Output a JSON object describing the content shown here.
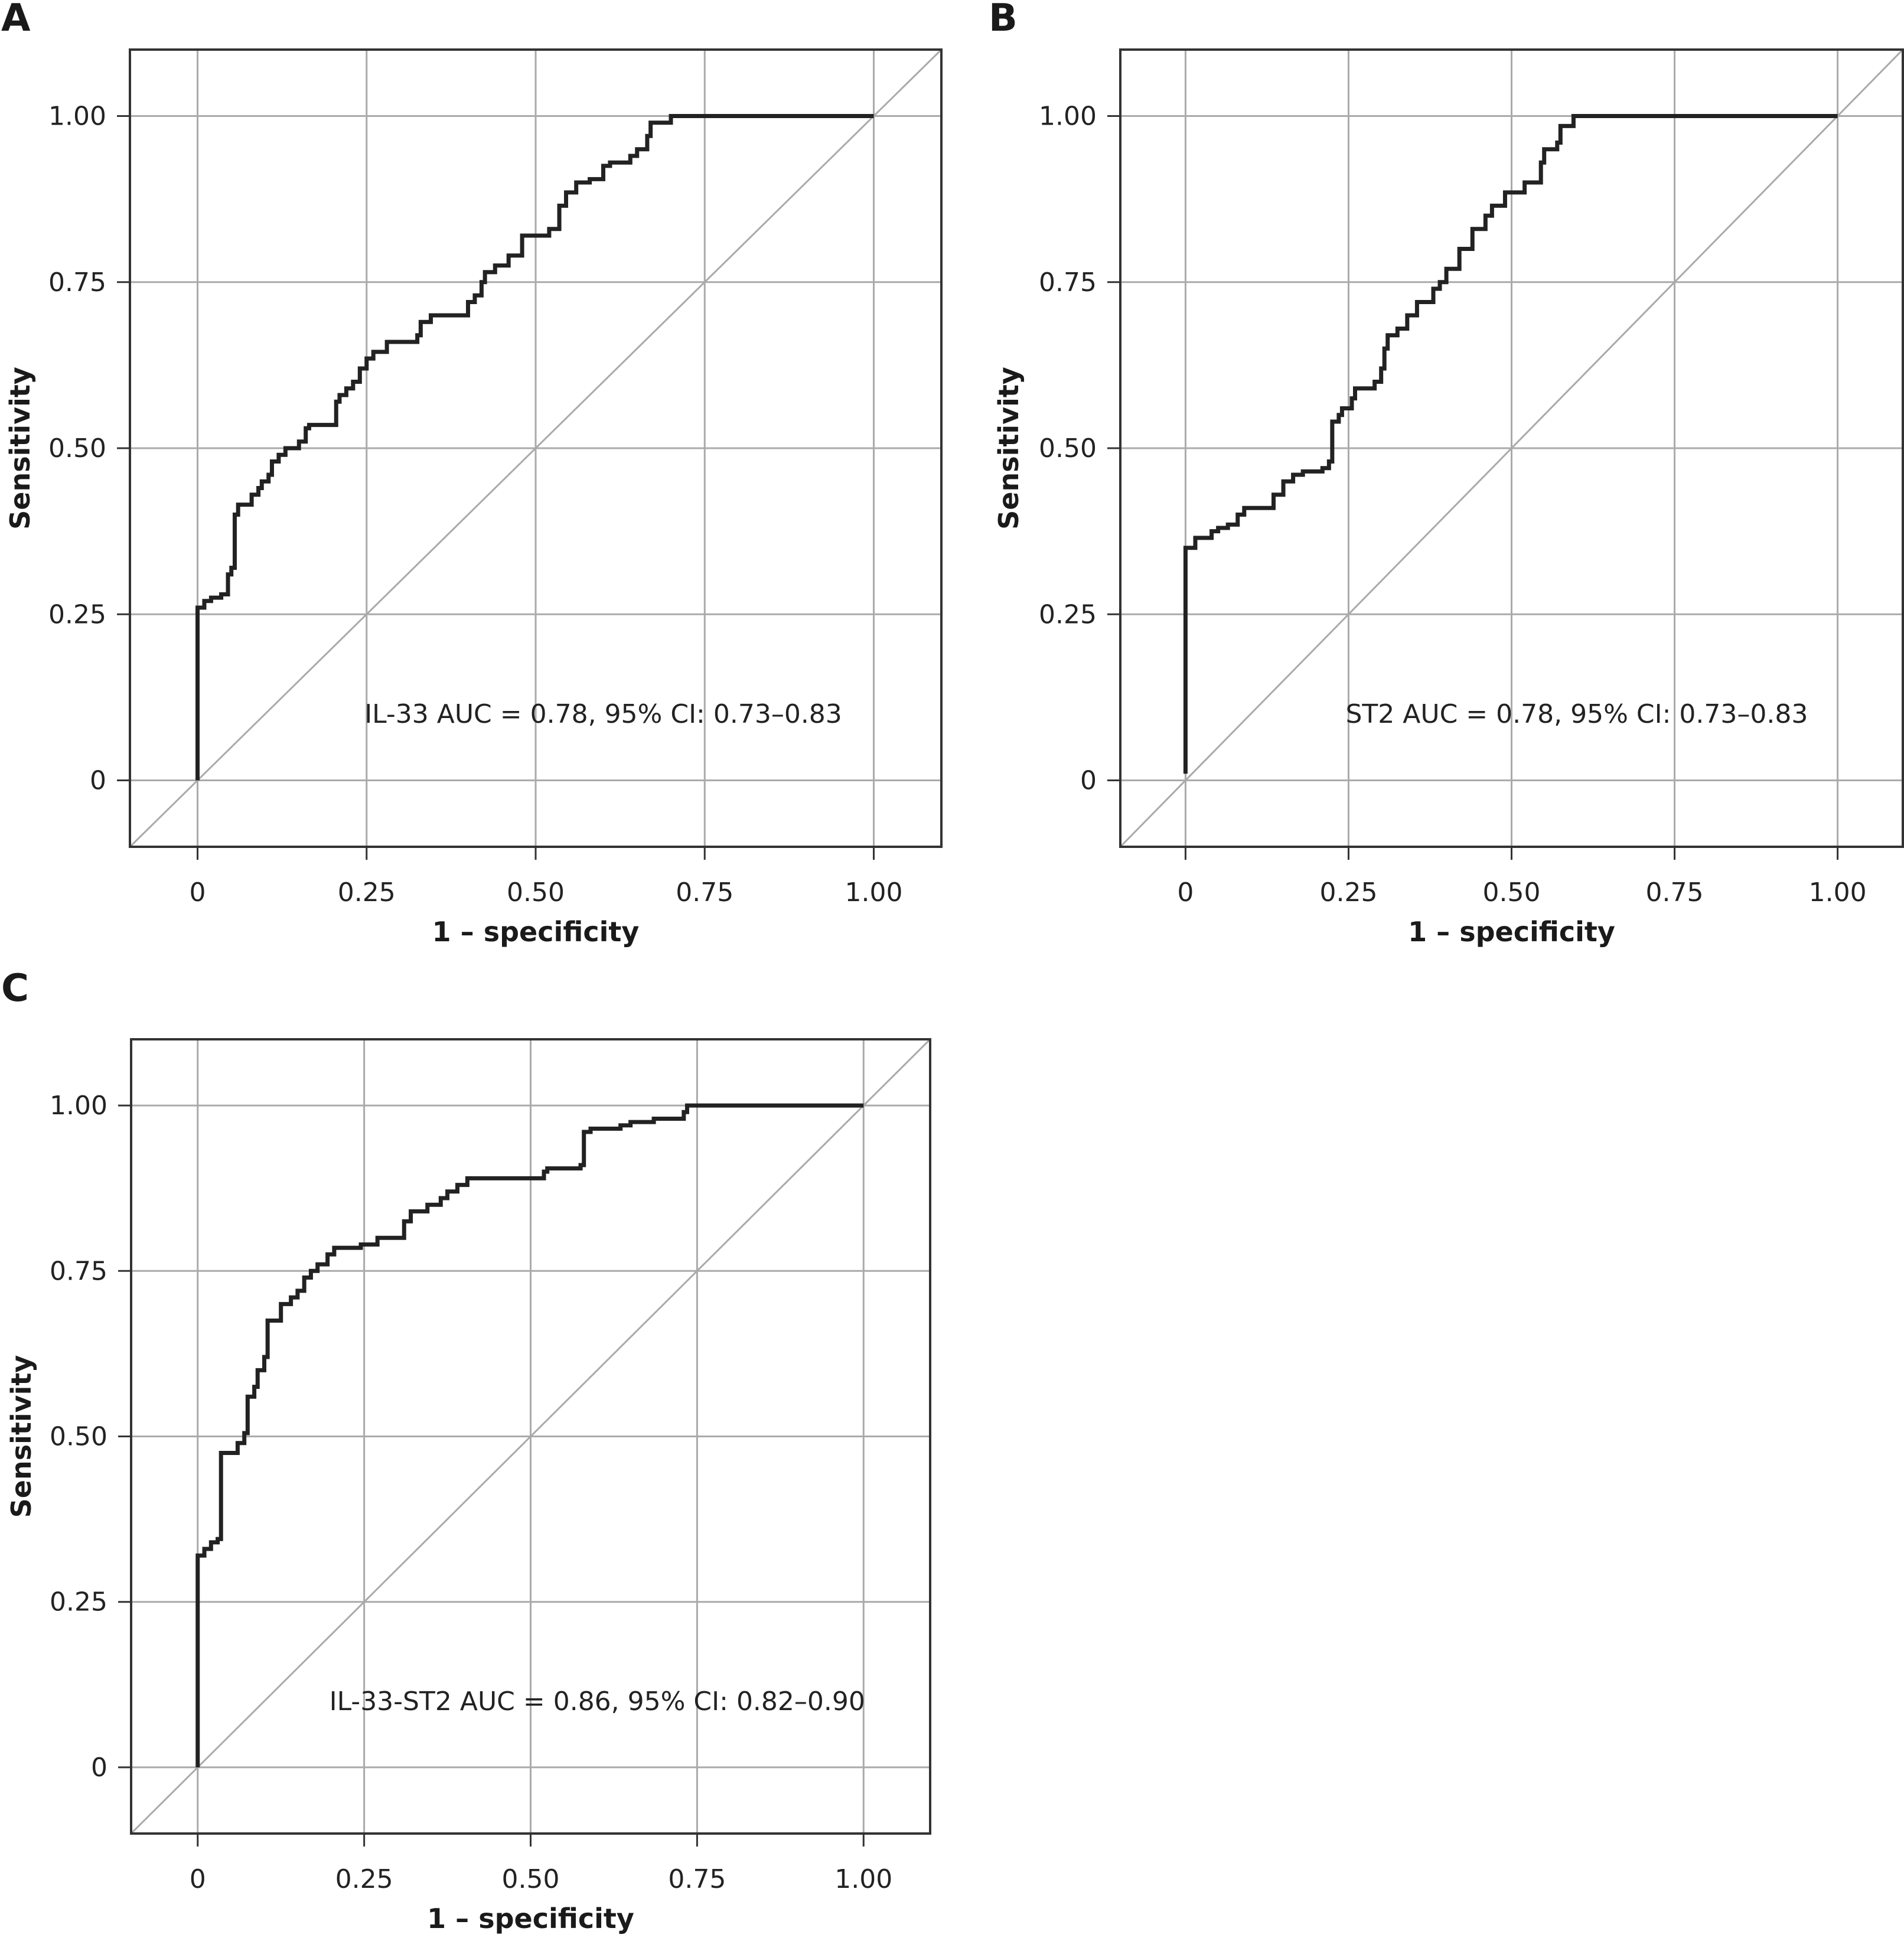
{
  "chart_data": [
    {
      "panel": "A",
      "type": "line",
      "title": "",
      "xlabel": "1 – specificity",
      "ylabel": "Sensitivity",
      "xlim": [
        -0.1,
        1.1
      ],
      "ylim": [
        -0.1,
        1.1
      ],
      "xticks": [
        0,
        0.25,
        0.5,
        0.75,
        1.0
      ],
      "xtick_labels": [
        "0",
        "0.25",
        "0.50",
        "0.75",
        "1.00"
      ],
      "yticks": [
        0,
        0.25,
        0.5,
        0.75,
        1.0
      ],
      "ytick_labels": [
        "0",
        "0.25",
        "0.50",
        "0.75",
        "1.00"
      ],
      "grid": true,
      "annotation": "IL-33 AUC = 0.78, 95% CI: 0.73–0.83",
      "reference_line": [
        [
          -0.1,
          -0.1
        ],
        [
          1.1,
          1.1
        ]
      ],
      "series": [
        {
          "name": "IL-33",
          "step": true,
          "points": [
            [
              0,
              0
            ],
            [
              0,
              0.26
            ],
            [
              0.01,
              0.27
            ],
            [
              0.02,
              0.275
            ],
            [
              0.035,
              0.28
            ],
            [
              0.045,
              0.31
            ],
            [
              0.05,
              0.32
            ],
            [
              0.055,
              0.4
            ],
            [
              0.06,
              0.415
            ],
            [
              0.08,
              0.43
            ],
            [
              0.09,
              0.44
            ],
            [
              0.095,
              0.45
            ],
            [
              0.105,
              0.46
            ],
            [
              0.11,
              0.48
            ],
            [
              0.12,
              0.49
            ],
            [
              0.13,
              0.5
            ],
            [
              0.15,
              0.51
            ],
            [
              0.16,
              0.53
            ],
            [
              0.165,
              0.535
            ],
            [
              0.205,
              0.57
            ],
            [
              0.21,
              0.58
            ],
            [
              0.22,
              0.59
            ],
            [
              0.23,
              0.6
            ],
            [
              0.24,
              0.62
            ],
            [
              0.25,
              0.635
            ],
            [
              0.26,
              0.645
            ],
            [
              0.28,
              0.66
            ],
            [
              0.325,
              0.67
            ],
            [
              0.33,
              0.69
            ],
            [
              0.345,
              0.7
            ],
            [
              0.4,
              0.72
            ],
            [
              0.41,
              0.73
            ],
            [
              0.42,
              0.75
            ],
            [
              0.425,
              0.765
            ],
            [
              0.44,
              0.775
            ],
            [
              0.46,
              0.79
            ],
            [
              0.48,
              0.82
            ],
            [
              0.52,
              0.83
            ],
            [
              0.535,
              0.865
            ],
            [
              0.545,
              0.885
            ],
            [
              0.56,
              0.9
            ],
            [
              0.58,
              0.905
            ],
            [
              0.6,
              0.925
            ],
            [
              0.61,
              0.93
            ],
            [
              0.64,
              0.94
            ],
            [
              0.65,
              0.95
            ],
            [
              0.665,
              0.97
            ],
            [
              0.67,
              0.99
            ],
            [
              0.7,
              1.0
            ],
            [
              1.0,
              1.0
            ]
          ]
        }
      ]
    },
    {
      "panel": "B",
      "type": "line",
      "title": "",
      "xlabel": "1 – specificity",
      "ylabel": "Sensitivity",
      "xlim": [
        -0.1,
        1.1
      ],
      "ylim": [
        -0.1,
        1.1
      ],
      "xticks": [
        0,
        0.25,
        0.5,
        0.75,
        1.0
      ],
      "xtick_labels": [
        "0",
        "0.25",
        "0.50",
        "0.75",
        "1.00"
      ],
      "yticks": [
        0,
        0.25,
        0.5,
        0.75,
        1.0
      ],
      "ytick_labels": [
        "0",
        "0.25",
        "0.50",
        "0.75",
        "1.00"
      ],
      "grid": true,
      "annotation": "ST2 AUC = 0.78, 95% CI: 0.73–0.83",
      "reference_line": [
        [
          -0.1,
          -0.1
        ],
        [
          1.1,
          1.1
        ]
      ],
      "series": [
        {
          "name": "ST2",
          "step": true,
          "points": [
            [
              0,
              0.01
            ],
            [
              0,
              0.35
            ],
            [
              0.015,
              0.365
            ],
            [
              0.04,
              0.375
            ],
            [
              0.05,
              0.38
            ],
            [
              0.065,
              0.385
            ],
            [
              0.08,
              0.4
            ],
            [
              0.09,
              0.41
            ],
            [
              0.135,
              0.43
            ],
            [
              0.15,
              0.45
            ],
            [
              0.165,
              0.46
            ],
            [
              0.18,
              0.465
            ],
            [
              0.21,
              0.47
            ],
            [
              0.22,
              0.48
            ],
            [
              0.225,
              0.54
            ],
            [
              0.235,
              0.55
            ],
            [
              0.24,
              0.56
            ],
            [
              0.255,
              0.575
            ],
            [
              0.26,
              0.59
            ],
            [
              0.29,
              0.6
            ],
            [
              0.3,
              0.62
            ],
            [
              0.305,
              0.65
            ],
            [
              0.31,
              0.67
            ],
            [
              0.325,
              0.68
            ],
            [
              0.34,
              0.7
            ],
            [
              0.355,
              0.72
            ],
            [
              0.38,
              0.74
            ],
            [
              0.39,
              0.75
            ],
            [
              0.4,
              0.77
            ],
            [
              0.42,
              0.8
            ],
            [
              0.44,
              0.83
            ],
            [
              0.46,
              0.85
            ],
            [
              0.47,
              0.865
            ],
            [
              0.49,
              0.885
            ],
            [
              0.52,
              0.9
            ],
            [
              0.545,
              0.93
            ],
            [
              0.55,
              0.95
            ],
            [
              0.57,
              0.96
            ],
            [
              0.575,
              0.985
            ],
            [
              0.595,
              1.0
            ],
            [
              1.0,
              1.0
            ]
          ]
        }
      ]
    },
    {
      "panel": "C",
      "type": "line",
      "title": "",
      "xlabel": "1 – specificity",
      "ylabel": "Sensitivity",
      "xlim": [
        -0.1,
        1.1
      ],
      "ylim": [
        -0.1,
        1.1
      ],
      "xticks": [
        0,
        0.25,
        0.5,
        0.75,
        1.0
      ],
      "xtick_labels": [
        "0",
        "0.25",
        "0.50",
        "0.75",
        "1.00"
      ],
      "yticks": [
        0,
        0.25,
        0.5,
        0.75,
        1.0
      ],
      "ytick_labels": [
        "0",
        "0.25",
        "0.50",
        "0.75",
        "1.00"
      ],
      "grid": true,
      "annotation": "IL-33-ST2 AUC = 0.86, 95% CI: 0.82–0.90",
      "reference_line": [
        [
          -0.1,
          -0.1
        ],
        [
          1.1,
          1.1
        ]
      ],
      "series": [
        {
          "name": "IL-33-ST2",
          "step": true,
          "points": [
            [
              0,
              0
            ],
            [
              0,
              0.32
            ],
            [
              0.01,
              0.33
            ],
            [
              0.02,
              0.34
            ],
            [
              0.03,
              0.345
            ],
            [
              0.035,
              0.355
            ],
            [
              0.035,
              0.475
            ],
            [
              0.06,
              0.49
            ],
            [
              0.07,
              0.505
            ],
            [
              0.075,
              0.56
            ],
            [
              0.085,
              0.575
            ],
            [
              0.09,
              0.6
            ],
            [
              0.1,
              0.62
            ],
            [
              0.105,
              0.675
            ],
            [
              0.125,
              0.7
            ],
            [
              0.14,
              0.71
            ],
            [
              0.15,
              0.72
            ],
            [
              0.16,
              0.74
            ],
            [
              0.17,
              0.75
            ],
            [
              0.18,
              0.76
            ],
            [
              0.195,
              0.775
            ],
            [
              0.205,
              0.785
            ],
            [
              0.245,
              0.79
            ],
            [
              0.27,
              0.8
            ],
            [
              0.31,
              0.825
            ],
            [
              0.32,
              0.84
            ],
            [
              0.345,
              0.85
            ],
            [
              0.365,
              0.86
            ],
            [
              0.375,
              0.87
            ],
            [
              0.39,
              0.88
            ],
            [
              0.405,
              0.89
            ],
            [
              0.52,
              0.9
            ],
            [
              0.525,
              0.905
            ],
            [
              0.575,
              0.91
            ],
            [
              0.58,
              0.96
            ],
            [
              0.59,
              0.965
            ],
            [
              0.635,
              0.97
            ],
            [
              0.65,
              0.975
            ],
            [
              0.685,
              0.98
            ],
            [
              0.73,
              0.99
            ],
            [
              0.735,
              1.0
            ],
            [
              1.0,
              1.0
            ]
          ]
        }
      ]
    }
  ],
  "panels": {
    "a_letter": "A",
    "b_letter": "B",
    "c_letter": "C"
  },
  "colors": {
    "curve": "#222222",
    "grid": "#aaaaaa",
    "reference": "#aaaaaa",
    "frame": "#333333"
  }
}
